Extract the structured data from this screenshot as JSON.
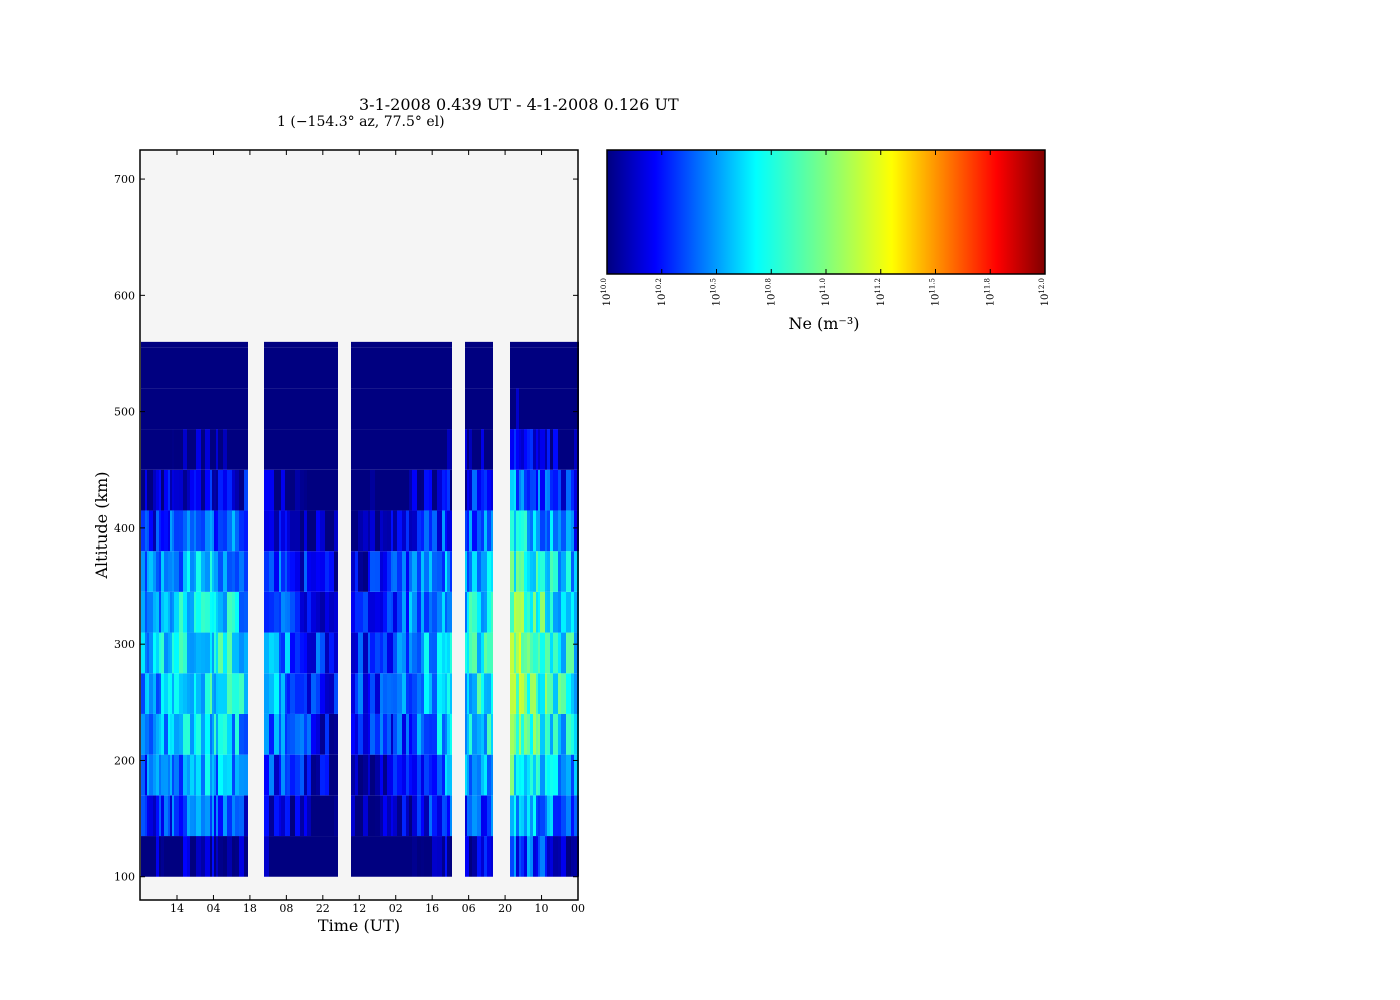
{
  "title": "3-1-2008 0.439 UT - 4-1-2008 0.126 UT",
  "subtitle": "1 (−154.3° az, 77.5° el)",
  "chart_data": [
    {
      "type": "heatmap",
      "xlabel": "Time (UT)",
      "ylabel": "Altitude (km)",
      "x_tick_labels": [
        "14",
        "04",
        "18",
        "08",
        "22",
        "12",
        "02",
        "16",
        "06",
        "20",
        "10",
        "00"
      ],
      "y_ticks": [
        100,
        200,
        300,
        400,
        500,
        600,
        700
      ],
      "ylim": [
        80,
        725
      ],
      "data_altitude_range": [
        100,
        560
      ],
      "data_gaps_between_ticks": [
        [
          "18",
          "08"
        ],
        [
          "22",
          "12"
        ],
        [
          "16",
          "06"
        ],
        [
          "06",
          "20"
        ]
      ],
      "background_color": "#f5f5f5",
      "colormap": "jet",
      "value_scale": "log10 Ne (m^-3), range 10.0 to 12.0"
    },
    {
      "type": "colorbar",
      "label": "Ne (m⁻³)",
      "tick_labels": [
        "10^10.0",
        "10^10.2",
        "10^10.5",
        "10^10.8",
        "10^11.0",
        "10^11.2",
        "10^11.5",
        "10^11.8",
        "10^12.0"
      ],
      "colors": [
        "#00007f",
        "#0000ff",
        "#007fff",
        "#00ffff",
        "#7fff7f",
        "#ffff00",
        "#ff7f00",
        "#ff0000",
        "#7f0000"
      ]
    }
  ]
}
